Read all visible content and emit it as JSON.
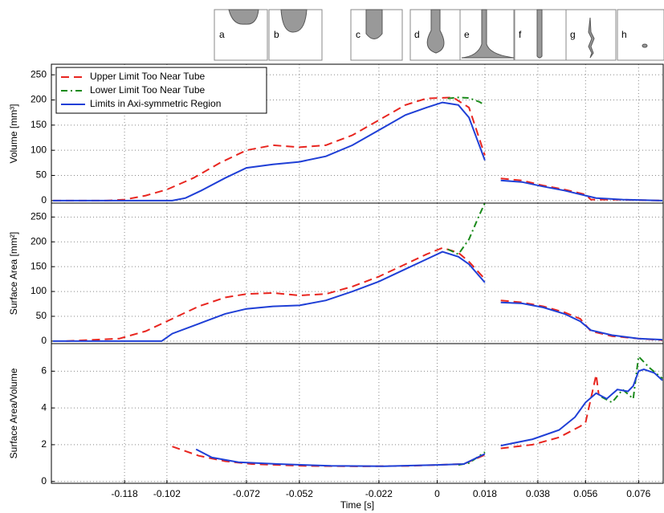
{
  "chart_data": [
    {
      "type": "line",
      "ylabel": "Volume [mm³]",
      "legend": "upper left",
      "grid": true,
      "xlim": [
        -0.1456,
        0.0853
      ],
      "xticks": [
        -0.118,
        -0.102,
        -0.072,
        -0.052,
        -0.022,
        0,
        0.018,
        0.038,
        0.056,
        0.076
      ],
      "ylim": [
        -5,
        271
      ],
      "yticks": [
        0,
        50,
        100,
        150,
        200,
        250
      ],
      "series": [
        {
          "name": "Upper Limit Too Near Tube",
          "color": "#e8251f",
          "dash": "dashed",
          "x": [
            -0.145,
            -0.125,
            -0.118,
            -0.11,
            -0.102,
            -0.092,
            -0.082,
            -0.072,
            -0.062,
            -0.052,
            -0.042,
            -0.032,
            -0.022,
            -0.012,
            -0.004,
            0.006,
            0.012,
            0.018,
            0.02,
            0.024,
            0.032,
            0.04,
            0.048,
            0.056,
            0.058,
            0.066,
            0.076,
            0.085
          ],
          "values": [
            0,
            0,
            2,
            10,
            22,
            45,
            75,
            100,
            110,
            106,
            110,
            130,
            160,
            190,
            203,
            205,
            185,
            90,
            null,
            44,
            40,
            30,
            22,
            12,
            2,
            2,
            1,
            0
          ]
        },
        {
          "name": "Lower Limit Too Near Tube",
          "color": "#1a8a1a",
          "dash": "dashdot",
          "x": [
            0.004,
            0.008,
            0.012,
            0.016,
            0.018
          ],
          "values": [
            203,
            205,
            204,
            196,
            190
          ]
        },
        {
          "name": "Limits in Axi-symmetric Region",
          "color": "#1f3fd6",
          "dash": "solid",
          "x": [
            -0.145,
            -0.1,
            -0.095,
            -0.089,
            -0.08,
            -0.072,
            -0.062,
            -0.052,
            -0.042,
            -0.032,
            -0.022,
            -0.012,
            -0.004,
            0.002,
            0.008,
            0.012,
            0.018,
            0.02,
            0.024,
            0.032,
            0.04,
            0.048,
            0.056,
            0.06,
            0.07,
            0.085
          ],
          "values": [
            0,
            0,
            5,
            20,
            45,
            65,
            72,
            77,
            88,
            110,
            140,
            170,
            185,
            195,
            190,
            165,
            80,
            null,
            40,
            37,
            28,
            20,
            10,
            5,
            2,
            0
          ]
        }
      ]
    },
    {
      "type": "line",
      "ylabel": "Surface Area [mm²]",
      "grid": true,
      "xlim": [
        -0.1456,
        0.0853
      ],
      "xticks": [
        -0.118,
        -0.102,
        -0.072,
        -0.052,
        -0.022,
        0,
        0.018,
        0.038,
        0.056,
        0.076
      ],
      "ylim": [
        -5,
        278
      ],
      "yticks": [
        0,
        50,
        100,
        150,
        200,
        250
      ],
      "series": [
        {
          "color": "#e8251f",
          "dash": "dashed",
          "x": [
            -0.14,
            -0.12,
            -0.11,
            -0.1,
            -0.09,
            -0.08,
            -0.072,
            -0.062,
            -0.052,
            -0.042,
            -0.032,
            -0.022,
            -0.012,
            -0.004,
            0.002,
            0.008,
            0.012,
            0.018,
            0.02,
            0.024,
            0.032,
            0.04,
            0.048,
            0.054,
            0.058,
            0.066,
            0.076,
            0.085
          ],
          "values": [
            0,
            5,
            20,
            45,
            70,
            88,
            95,
            97,
            92,
            95,
            110,
            130,
            155,
            175,
            188,
            178,
            160,
            125,
            null,
            82,
            78,
            70,
            58,
            45,
            20,
            10,
            5,
            2
          ]
        },
        {
          "color": "#1a8a1a",
          "dash": "dashdot",
          "x": [
            0.004,
            0.008,
            0.012,
            0.016,
            0.018
          ],
          "values": [
            185,
            175,
            205,
            255,
            278
          ]
        },
        {
          "color": "#1f3fd6",
          "dash": "solid",
          "x": [
            -0.145,
            -0.104,
            -0.1,
            -0.09,
            -0.08,
            -0.072,
            -0.062,
            -0.052,
            -0.042,
            -0.032,
            -0.022,
            -0.012,
            -0.004,
            0.002,
            0.008,
            0.012,
            0.018,
            0.02,
            0.024,
            0.032,
            0.04,
            0.048,
            0.054,
            0.058,
            0.066,
            0.076,
            0.085
          ],
          "values": [
            0,
            0,
            15,
            35,
            55,
            65,
            70,
            72,
            82,
            100,
            120,
            145,
            165,
            180,
            170,
            155,
            118,
            null,
            78,
            76,
            68,
            55,
            40,
            22,
            12,
            5,
            3
          ]
        }
      ]
    },
    {
      "type": "line",
      "ylabel": "Surface Area/Volume",
      "xlabel": "Time [s]",
      "grid": true,
      "xlim": [
        -0.1456,
        0.0853
      ],
      "xticks": [
        -0.118,
        -0.102,
        -0.072,
        -0.052,
        -0.022,
        0,
        0.018,
        0.038,
        0.056,
        0.076
      ],
      "ylim": [
        -0.1,
        7.5
      ],
      "yticks": [
        0,
        2,
        4,
        6
      ],
      "series": [
        {
          "color": "#e8251f",
          "dash": "dashed",
          "x": [
            -0.1,
            -0.09,
            -0.08,
            -0.07,
            -0.05,
            -0.03,
            -0.01,
            0.004,
            0.01,
            0.018,
            0.02,
            0.024,
            0.036,
            0.046,
            0.054,
            0.056,
            0.058,
            0.06,
            0.061
          ],
          "values": [
            1.9,
            1.4,
            1.1,
            0.95,
            0.85,
            0.82,
            0.85,
            0.92,
            0.95,
            1.45,
            null,
            1.8,
            2.0,
            2.4,
            3.0,
            3.2,
            4.5,
            5.8,
            4.7
          ]
        },
        {
          "color": "#1a8a1a",
          "dash": "dashdot",
          "x": [
            0.008,
            0.012,
            0.018,
            0.02,
            0.062,
            0.066,
            0.07,
            0.074,
            0.076,
            0.08,
            0.085
          ],
          "values": [
            0.9,
            1.0,
            1.6,
            null,
            4.6,
            4.3,
            5.0,
            4.5,
            6.8,
            6.2,
            5.6
          ]
        },
        {
          "color": "#1f3fd6",
          "dash": "solid",
          "x": [
            -0.091,
            -0.085,
            -0.075,
            -0.06,
            -0.04,
            -0.02,
            0,
            0.01,
            0.018,
            0.02,
            0.024,
            0.036,
            0.046,
            0.052,
            0.056,
            0.06,
            0.064,
            0.068,
            0.072,
            0.074,
            0.076,
            0.078,
            0.082,
            0.085
          ],
          "values": [
            1.75,
            1.3,
            1.05,
            0.95,
            0.85,
            0.83,
            0.9,
            0.95,
            1.5,
            null,
            1.95,
            2.3,
            2.8,
            3.5,
            4.3,
            4.8,
            4.5,
            5.0,
            4.9,
            5.2,
            6.0,
            6.1,
            5.9,
            5.5
          ]
        }
      ]
    }
  ],
  "insets": {
    "labels": [
      "a",
      "b",
      "c",
      "d",
      "e",
      "f",
      "g",
      "h"
    ]
  }
}
